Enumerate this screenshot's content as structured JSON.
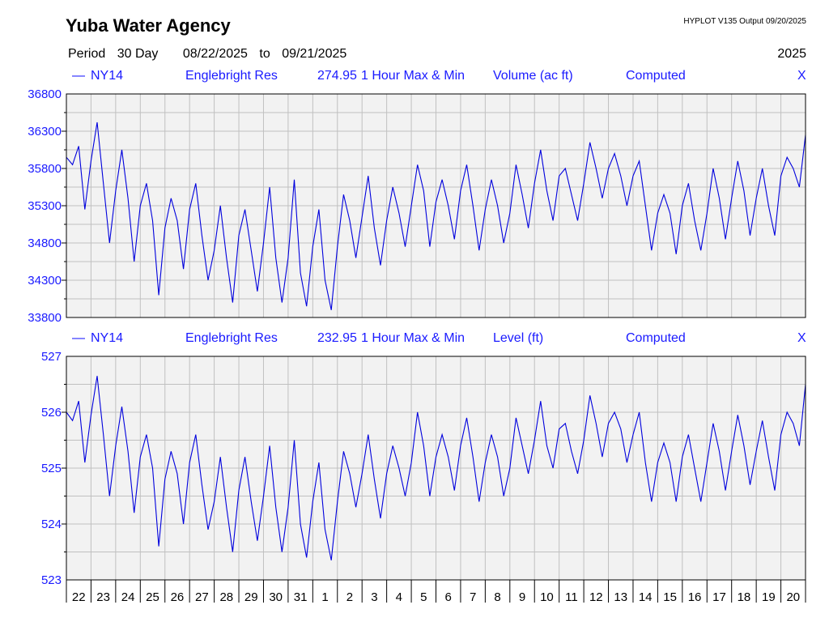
{
  "header": {
    "title": "Yuba Water Agency",
    "program": "HYPLOT V135  Output 09/20/2025",
    "period_label": "Period",
    "period_value": "30 Day",
    "start_date": "08/22/2025",
    "to_word": "to",
    "end_date": "09/21/2025",
    "year": "2025"
  },
  "colors": {
    "line": "#0000dd",
    "text": "#1a1aff",
    "grid": "#c0c0c0",
    "plot_bg": "#f2f2f2"
  },
  "x_ticks": [
    "22",
    "23",
    "24",
    "25",
    "26",
    "27",
    "28",
    "29",
    "30",
    "31",
    "1",
    "2",
    "3",
    "4",
    "5",
    "6",
    "7",
    "8",
    "9",
    "10",
    "11",
    "12",
    "13",
    "14",
    "15",
    "16",
    "17",
    "18",
    "19",
    "20"
  ],
  "chart_data": [
    {
      "type": "line",
      "station": "NY14",
      "location": "Englebright Res",
      "code": "274.95",
      "interval": "1 Hour Max & Min",
      "parameter": "Volume (ac ft)",
      "status": "Computed",
      "flag": "X",
      "ylim": [
        33800,
        36800
      ],
      "yticks": [
        36800,
        36300,
        35800,
        35300,
        34800,
        34300,
        33800
      ],
      "ytick_labels": [
        "36800",
        "36300",
        "35800",
        "35300",
        "34800",
        "34300",
        "33800"
      ],
      "x_range": [
        "2025-08-22",
        "2025-09-21"
      ],
      "series": [
        {
          "x": [
            "2025-08-22",
            "2025-08-22",
            "2025-08-22",
            "2025-08-22",
            "2025-08-23",
            "2025-08-23",
            "2025-08-23",
            "2025-08-23",
            "2025-08-24",
            "2025-08-24",
            "2025-08-24",
            "2025-08-24",
            "2025-08-25",
            "2025-08-25",
            "2025-08-25",
            "2025-08-25",
            "2025-08-26",
            "2025-08-26",
            "2025-08-26",
            "2025-08-26",
            "2025-08-27",
            "2025-08-27",
            "2025-08-27",
            "2025-08-27",
            "2025-08-28",
            "2025-08-28",
            "2025-08-28",
            "2025-08-28",
            "2025-08-29",
            "2025-08-29",
            "2025-08-29",
            "2025-08-29",
            "2025-08-30",
            "2025-08-30",
            "2025-08-30",
            "2025-08-30",
            "2025-08-31",
            "2025-08-31",
            "2025-08-31",
            "2025-08-31",
            "2025-09-01",
            "2025-09-01",
            "2025-09-01",
            "2025-09-01",
            "2025-09-02",
            "2025-09-02",
            "2025-09-02",
            "2025-09-02",
            "2025-09-03",
            "2025-09-03",
            "2025-09-03",
            "2025-09-03",
            "2025-09-04",
            "2025-09-04",
            "2025-09-04",
            "2025-09-04",
            "2025-09-05",
            "2025-09-05",
            "2025-09-05",
            "2025-09-05",
            "2025-09-06",
            "2025-09-06",
            "2025-09-06",
            "2025-09-06",
            "2025-09-07",
            "2025-09-07",
            "2025-09-07",
            "2025-09-07",
            "2025-09-08",
            "2025-09-08",
            "2025-09-08",
            "2025-09-08",
            "2025-09-09",
            "2025-09-09",
            "2025-09-09",
            "2025-09-09",
            "2025-09-10",
            "2025-09-10",
            "2025-09-10",
            "2025-09-10",
            "2025-09-11",
            "2025-09-11",
            "2025-09-11",
            "2025-09-11",
            "2025-09-12",
            "2025-09-12",
            "2025-09-12",
            "2025-09-12",
            "2025-09-13",
            "2025-09-13",
            "2025-09-13",
            "2025-09-13",
            "2025-09-14",
            "2025-09-14",
            "2025-09-14",
            "2025-09-14",
            "2025-09-15",
            "2025-09-15",
            "2025-09-15",
            "2025-09-15",
            "2025-09-16",
            "2025-09-16",
            "2025-09-16",
            "2025-09-16",
            "2025-09-17",
            "2025-09-17",
            "2025-09-17",
            "2025-09-17",
            "2025-09-18",
            "2025-09-18",
            "2025-09-18",
            "2025-09-18",
            "2025-09-19",
            "2025-09-19",
            "2025-09-19",
            "2025-09-19",
            "2025-09-20",
            "2025-09-20",
            "2025-09-20",
            "2025-09-20",
            "2025-09-21"
          ],
          "hour": [
            0,
            6,
            12,
            18,
            0,
            6,
            12,
            18,
            0,
            6,
            12,
            18,
            0,
            6,
            12,
            18,
            0,
            6,
            12,
            18,
            0,
            6,
            12,
            18,
            0,
            6,
            12,
            18,
            0,
            6,
            12,
            18,
            0,
            6,
            12,
            18,
            0,
            6,
            12,
            18,
            0,
            6,
            12,
            18,
            0,
            6,
            12,
            18,
            0,
            6,
            12,
            18,
            0,
            6,
            12,
            18,
            0,
            6,
            12,
            18,
            0,
            6,
            12,
            18,
            0,
            6,
            12,
            18,
            0,
            6,
            12,
            18,
            0,
            6,
            12,
            18,
            0,
            6,
            12,
            18,
            0,
            6,
            12,
            18,
            0,
            6,
            12,
            18,
            0,
            6,
            12,
            18,
            0,
            6,
            12,
            18,
            0,
            6,
            12,
            18,
            0,
            6,
            12,
            18,
            0,
            6,
            12,
            18,
            0,
            6,
            12,
            18,
            0,
            6,
            12,
            18,
            0,
            6,
            12,
            18,
            0
          ],
          "y": [
            35950,
            35850,
            36100,
            35250,
            35900,
            36420,
            35600,
            34800,
            35500,
            36050,
            35400,
            34550,
            35300,
            35600,
            35100,
            34100,
            35000,
            35400,
            35100,
            34450,
            35250,
            35600,
            34900,
            34300,
            34700,
            35300,
            34600,
            34000,
            34900,
            35250,
            34700,
            34150,
            34800,
            35550,
            34600,
            34000,
            34600,
            35650,
            34400,
            33950,
            34750,
            35250,
            34300,
            33900,
            34750,
            35450,
            35100,
            34600,
            35150,
            35700,
            35000,
            34500,
            35100,
            35550,
            35200,
            34750,
            35300,
            35850,
            35500,
            34750,
            35350,
            35650,
            35300,
            34850,
            35500,
            35850,
            35300,
            34700,
            35250,
            35650,
            35300,
            34800,
            35200,
            35850,
            35450,
            35000,
            35600,
            36050,
            35500,
            35100,
            35700,
            35800,
            35450,
            35100,
            35600,
            36150,
            35800,
            35400,
            35800,
            36000,
            35700,
            35300,
            35700,
            35900,
            35300,
            34700,
            35200,
            35450,
            35200,
            34650,
            35300,
            35600,
            35100,
            34700,
            35200,
            35800,
            35400,
            34850,
            35400,
            35900,
            35500,
            34900,
            35400,
            35800,
            35300,
            34900,
            35700,
            35950,
            35800,
            35550,
            36250
          ]
        }
      ]
    },
    {
      "type": "line",
      "station": "NY14",
      "location": "Englebright Res",
      "code": "232.95",
      "interval": "1 Hour Max & Min",
      "parameter": "Level (ft)",
      "status": "Computed",
      "flag": "X",
      "ylim": [
        523,
        527
      ],
      "yticks": [
        527,
        526,
        525,
        524,
        523
      ],
      "ytick_labels": [
        "527",
        "526",
        "525",
        "524",
        "523"
      ],
      "x_range": [
        "2025-08-22",
        "2025-09-21"
      ],
      "series": [
        {
          "x": [
            "2025-08-22",
            "2025-08-22",
            "2025-08-22",
            "2025-08-22",
            "2025-08-23",
            "2025-08-23",
            "2025-08-23",
            "2025-08-23",
            "2025-08-24",
            "2025-08-24",
            "2025-08-24",
            "2025-08-24",
            "2025-08-25",
            "2025-08-25",
            "2025-08-25",
            "2025-08-25",
            "2025-08-26",
            "2025-08-26",
            "2025-08-26",
            "2025-08-26",
            "2025-08-27",
            "2025-08-27",
            "2025-08-27",
            "2025-08-27",
            "2025-08-28",
            "2025-08-28",
            "2025-08-28",
            "2025-08-28",
            "2025-08-29",
            "2025-08-29",
            "2025-08-29",
            "2025-08-29",
            "2025-08-30",
            "2025-08-30",
            "2025-08-30",
            "2025-08-30",
            "2025-08-31",
            "2025-08-31",
            "2025-08-31",
            "2025-08-31",
            "2025-09-01",
            "2025-09-01",
            "2025-09-01",
            "2025-09-01",
            "2025-09-02",
            "2025-09-02",
            "2025-09-02",
            "2025-09-02",
            "2025-09-03",
            "2025-09-03",
            "2025-09-03",
            "2025-09-03",
            "2025-09-04",
            "2025-09-04",
            "2025-09-04",
            "2025-09-04",
            "2025-09-05",
            "2025-09-05",
            "2025-09-05",
            "2025-09-05",
            "2025-09-06",
            "2025-09-06",
            "2025-09-06",
            "2025-09-06",
            "2025-09-07",
            "2025-09-07",
            "2025-09-07",
            "2025-09-07",
            "2025-09-08",
            "2025-09-08",
            "2025-09-08",
            "2025-09-08",
            "2025-09-09",
            "2025-09-09",
            "2025-09-09",
            "2025-09-09",
            "2025-09-10",
            "2025-09-10",
            "2025-09-10",
            "2025-09-10",
            "2025-09-11",
            "2025-09-11",
            "2025-09-11",
            "2025-09-11",
            "2025-09-12",
            "2025-09-12",
            "2025-09-12",
            "2025-09-12",
            "2025-09-13",
            "2025-09-13",
            "2025-09-13",
            "2025-09-13",
            "2025-09-14",
            "2025-09-14",
            "2025-09-14",
            "2025-09-14",
            "2025-09-15",
            "2025-09-15",
            "2025-09-15",
            "2025-09-15",
            "2025-09-16",
            "2025-09-16",
            "2025-09-16",
            "2025-09-16",
            "2025-09-17",
            "2025-09-17",
            "2025-09-17",
            "2025-09-17",
            "2025-09-18",
            "2025-09-18",
            "2025-09-18",
            "2025-09-18",
            "2025-09-19",
            "2025-09-19",
            "2025-09-19",
            "2025-09-19",
            "2025-09-20",
            "2025-09-20",
            "2025-09-20",
            "2025-09-20",
            "2025-09-21"
          ],
          "hour": [
            0,
            6,
            12,
            18,
            0,
            6,
            12,
            18,
            0,
            6,
            12,
            18,
            0,
            6,
            12,
            18,
            0,
            6,
            12,
            18,
            0,
            6,
            12,
            18,
            0,
            6,
            12,
            18,
            0,
            6,
            12,
            18,
            0,
            6,
            12,
            18,
            0,
            6,
            12,
            18,
            0,
            6,
            12,
            18,
            0,
            6,
            12,
            18,
            0,
            6,
            12,
            18,
            0,
            6,
            12,
            18,
            0,
            6,
            12,
            18,
            0,
            6,
            12,
            18,
            0,
            6,
            12,
            18,
            0,
            6,
            12,
            18,
            0,
            6,
            12,
            18,
            0,
            6,
            12,
            18,
            0,
            6,
            12,
            18,
            0,
            6,
            12,
            18,
            0,
            6,
            12,
            18,
            0,
            6,
            12,
            18,
            0,
            6,
            12,
            18,
            0,
            6,
            12,
            18,
            0,
            6,
            12,
            18,
            0,
            6,
            12,
            18,
            0,
            6,
            12,
            18,
            0,
            6,
            12,
            18,
            0
          ],
          "y": [
            526.0,
            525.85,
            526.2,
            525.1,
            525.95,
            526.65,
            525.6,
            524.5,
            525.4,
            526.1,
            525.3,
            524.2,
            525.2,
            525.6,
            525.0,
            523.6,
            524.8,
            525.3,
            524.9,
            524.0,
            525.1,
            525.6,
            524.7,
            523.9,
            524.4,
            525.2,
            524.3,
            523.5,
            524.6,
            525.2,
            524.4,
            523.7,
            524.5,
            525.4,
            524.3,
            523.5,
            524.3,
            525.5,
            524.0,
            523.4,
            524.4,
            525.1,
            523.9,
            523.35,
            524.4,
            525.3,
            524.9,
            524.3,
            524.9,
            525.6,
            524.8,
            524.1,
            524.9,
            525.4,
            525.0,
            524.5,
            525.1,
            526.0,
            525.4,
            524.5,
            525.2,
            525.6,
            525.2,
            524.6,
            525.4,
            525.9,
            525.2,
            524.4,
            525.1,
            525.6,
            525.2,
            524.5,
            525.0,
            525.9,
            525.4,
            524.9,
            525.5,
            526.2,
            525.4,
            525.0,
            525.7,
            525.8,
            525.3,
            524.9,
            525.5,
            526.3,
            525.8,
            525.2,
            525.8,
            526.0,
            525.7,
            525.1,
            525.6,
            526.0,
            525.1,
            524.4,
            525.1,
            525.45,
            525.1,
            524.4,
            525.2,
            525.6,
            525.0,
            524.4,
            525.1,
            525.8,
            525.3,
            524.6,
            525.3,
            525.95,
            525.4,
            524.7,
            525.3,
            525.85,
            525.2,
            524.6,
            525.6,
            526.0,
            525.8,
            525.4,
            526.5
          ]
        }
      ]
    }
  ]
}
